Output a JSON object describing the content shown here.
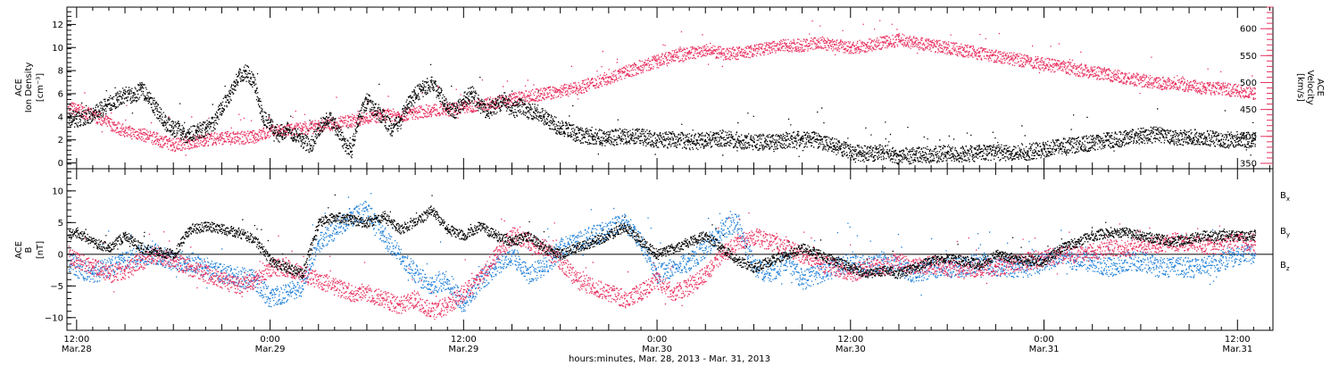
{
  "colors": {
    "black": "#000000",
    "pink": "#e8305f",
    "blue": "#1e7fd8"
  },
  "time_axis": {
    "title": "hours:minutes, Mar. 28, 2013 - Mar. 31, 2013",
    "ticks": [
      {
        "hours": 12,
        "time": "12:00",
        "date": "Mar.28"
      },
      {
        "hours": 24,
        "time": "0:00",
        "date": "Mar.29"
      },
      {
        "hours": 36,
        "time": "12:00",
        "date": "Mar.29"
      },
      {
        "hours": 48,
        "time": "0:00",
        "date": "Mar.30"
      },
      {
        "hours": 60,
        "time": "12:00",
        "date": "Mar.30"
      },
      {
        "hours": 72,
        "time": "0:00",
        "date": "Mar.31"
      },
      {
        "hours": 84,
        "time": "12:00",
        "date": "Mar.31"
      }
    ],
    "range_hours": [
      11.4,
      86.2
    ]
  },
  "chart_data": [
    {
      "type": "scatter",
      "x_units": "hours since Mar. 28, 2013 00:00",
      "ylabel_left": [
        "ACE",
        "Ion Density",
        "[cm⁻³]"
      ],
      "ylim_left": [
        -0.5,
        13.5
      ],
      "yticks_left": [
        0,
        2,
        4,
        6,
        8,
        10,
        12
      ],
      "ylabel_right": [
        "ACE",
        "Velocity",
        "[km/s]"
      ],
      "ylim_right": [
        340,
        640
      ],
      "yticks_right": [
        350,
        400,
        450,
        500,
        550,
        600
      ],
      "series": [
        {
          "color": "#000000",
          "axis": "left",
          "x": [
            11.5,
            12,
            13,
            13.8,
            14.5,
            15,
            15.5,
            16,
            16.5,
            17,
            17.5,
            18,
            18.3,
            18.6,
            19,
            19.5,
            20,
            20.5,
            21,
            21.5,
            22,
            22.5,
            23,
            23.5,
            24,
            24.5,
            25,
            25.5,
            26,
            26.5,
            27,
            27.5,
            28,
            28.5,
            29,
            29.5,
            30,
            30.5,
            31,
            31.5,
            32,
            32.5,
            33,
            33.5,
            34,
            34.5,
            35,
            35.5,
            36,
            36.5,
            37,
            37.5,
            38,
            38.5,
            39,
            39.5,
            40,
            40.5,
            41,
            41.5,
            42,
            42.5,
            43,
            44,
            45,
            46,
            47,
            48,
            49,
            50,
            51,
            52,
            53,
            54,
            55,
            56,
            57,
            58,
            59,
            60,
            60.5,
            61,
            62,
            62.5,
            63,
            64,
            65,
            66,
            67,
            68,
            69,
            70,
            71,
            72,
            73,
            74,
            75,
            76,
            77,
            78,
            79,
            80,
            81,
            82,
            83,
            84,
            85.1
          ],
          "y": [
            4,
            3.8,
            4.2,
            5,
            5.5,
            6,
            5.8,
            6.5,
            5.5,
            4.5,
            3.5,
            3,
            3,
            2.5,
            2.5,
            2.8,
            3,
            3.5,
            5,
            6,
            7.5,
            8,
            7,
            4,
            3.5,
            2.5,
            3,
            2.5,
            2,
            1.5,
            3,
            4,
            3.5,
            2,
            1,
            4,
            5.5,
            4.5,
            4,
            3,
            3.5,
            5,
            6,
            6.5,
            7,
            6,
            5,
            4.5,
            5.5,
            6,
            5,
            4.5,
            5,
            5.5,
            4.5,
            5,
            4.5,
            4.5,
            4,
            3.5,
            3,
            3,
            2.5,
            2.3,
            2.2,
            2.4,
            2.3,
            2,
            2.1,
            1.9,
            2,
            2.2,
            2,
            1.8,
            1.9,
            2,
            2.1,
            2,
            1.5,
            1,
            0.9,
            0.8,
            1,
            0.8,
            0.6,
            0.7,
            0.8,
            0.9,
            0.8,
            0.9,
            1,
            0.8,
            1,
            1.2,
            1.5,
            1.6,
            1.8,
            2,
            2.2,
            2.4,
            2.5,
            2.2,
            2.3,
            2.2,
            2,
            2.1,
            2
          ]
        },
        {
          "color": "#e8305f",
          "axis": "right",
          "x": [
            11.5,
            12,
            13,
            14,
            15,
            16,
            17,
            18,
            19,
            20,
            21,
            22,
            23,
            24,
            25,
            26,
            27,
            28,
            29,
            30,
            31,
            32,
            33,
            34,
            35,
            36,
            37,
            38,
            39,
            40,
            41,
            42,
            43,
            44,
            45,
            46,
            47,
            48,
            49,
            50,
            51,
            52,
            53,
            54,
            55,
            56,
            57,
            58,
            59,
            60,
            61,
            62,
            63,
            64,
            65,
            66,
            67,
            68,
            69,
            70,
            71,
            72,
            73,
            74,
            75,
            76,
            77,
            78,
            79,
            80,
            81,
            82,
            83,
            84,
            85.1
          ],
          "y": [
            455,
            450,
            440,
            425,
            410,
            405,
            395,
            385,
            390,
            395,
            398,
            398,
            400,
            410,
            412,
            415,
            420,
            425,
            430,
            435,
            440,
            440,
            445,
            450,
            450,
            455,
            460,
            465,
            470,
            475,
            480,
            485,
            490,
            500,
            510,
            520,
            530,
            540,
            550,
            555,
            560,
            555,
            555,
            560,
            565,
            570,
            570,
            575,
            570,
            565,
            570,
            575,
            580,
            575,
            570,
            565,
            560,
            555,
            550,
            545,
            540,
            535,
            530,
            525,
            520,
            515,
            510,
            505,
            500,
            500,
            495,
            490,
            490,
            485,
            480
          ]
        }
      ]
    },
    {
      "type": "scatter",
      "x_units": "hours since Mar. 28, 2013 00:00",
      "ylabel_left": [
        "ACE",
        "B",
        "[nT]"
      ],
      "ylim_left": [
        -12,
        13.5
      ],
      "yticks_left": [
        -10,
        -5,
        0,
        5,
        10
      ],
      "zero_line": true,
      "series": [
        {
          "name": "Bx",
          "color": "#000000",
          "x": [
            11.5,
            12,
            13,
            14,
            15,
            16,
            17,
            18,
            19,
            20,
            21,
            22,
            23,
            24,
            25,
            26,
            27,
            28,
            29,
            30,
            31,
            32,
            33,
            34,
            35,
            36,
            37,
            38,
            39,
            40,
            41,
            42,
            43,
            44,
            45,
            46,
            47,
            48,
            49,
            50,
            51,
            52,
            53,
            54,
            55,
            56,
            57,
            58,
            59,
            60,
            61,
            62,
            63,
            64,
            65,
            66,
            67,
            68,
            69,
            70,
            71,
            72,
            73,
            74,
            75,
            76,
            77,
            78,
            79,
            80,
            81,
            82,
            83,
            84,
            85.1
          ],
          "y": [
            3,
            3.5,
            2,
            1,
            3,
            1,
            0.5,
            0,
            4,
            4.5,
            4,
            3.5,
            2.5,
            -1,
            -2,
            -3,
            5,
            6,
            5.5,
            5,
            6,
            4,
            5,
            7,
            4,
            3,
            4.5,
            3,
            2,
            3,
            1,
            0,
            1,
            2,
            3,
            4.5,
            2,
            0,
            1,
            2,
            3,
            1,
            -1,
            -2,
            -1,
            0,
            1,
            0,
            -1,
            -2,
            -3,
            -2.5,
            -3,
            -2,
            -1,
            -0.5,
            -1,
            -1.5,
            0,
            -0.5,
            -1,
            -1,
            1,
            2,
            3,
            3.5,
            3.5,
            3,
            2.5,
            2,
            2.5,
            3,
            3,
            3,
            3
          ]
        },
        {
          "name": "By",
          "color": "#1e7fd8",
          "x": [
            11.5,
            12,
            13,
            14,
            15,
            16,
            17,
            18,
            19,
            20,
            21,
            22,
            23,
            24,
            25,
            26,
            27,
            28,
            29,
            30,
            31,
            32,
            33,
            34,
            35,
            36,
            37,
            38,
            39,
            40,
            41,
            42,
            43,
            44,
            45,
            46,
            47,
            48,
            49,
            50,
            51,
            52,
            53,
            54,
            55,
            56,
            57,
            58,
            59,
            60,
            61,
            62,
            63,
            64,
            65,
            66,
            67,
            68,
            69,
            70,
            71,
            72,
            73,
            74,
            75,
            76,
            77,
            78,
            79,
            80,
            81,
            82,
            83,
            84,
            85.1
          ],
          "y": [
            -1,
            -2,
            -3,
            -2,
            -1,
            0,
            0,
            -1,
            -1,
            -2,
            -3,
            -3.5,
            -4,
            -7,
            -6,
            -5,
            2,
            4,
            6,
            7,
            3,
            0,
            -3,
            -5,
            -4,
            -8,
            -4,
            -2,
            0,
            -3,
            -2,
            1,
            2,
            3,
            4,
            5,
            2,
            -3,
            -2,
            -1,
            1,
            4,
            5,
            -2,
            -3,
            -1,
            -4,
            -3,
            -2,
            -1,
            -2,
            -1,
            -2,
            -3,
            -2,
            -2,
            -2,
            -1,
            -2,
            -2,
            -2,
            -1,
            0,
            -1,
            -1,
            -2,
            -1,
            -1,
            -2,
            -2,
            -2,
            -2,
            -1,
            0,
            0
          ]
        },
        {
          "name": "Bz",
          "color": "#e8305f",
          "x": [
            11.5,
            12,
            13,
            14,
            15,
            16,
            17,
            18,
            19,
            20,
            21,
            22,
            23,
            24,
            25,
            26,
            27,
            28,
            29,
            30,
            31,
            32,
            33,
            34,
            35,
            36,
            37,
            38,
            39,
            40,
            41,
            42,
            43,
            44,
            45,
            46,
            47,
            48,
            49,
            50,
            51,
            52,
            53,
            54,
            55,
            56,
            57,
            58,
            59,
            60,
            61,
            62,
            63,
            64,
            65,
            66,
            67,
            68,
            69,
            70,
            71,
            72,
            73,
            74,
            75,
            76,
            77,
            78,
            79,
            80,
            81,
            82,
            83,
            84,
            85.1
          ],
          "y": [
            0,
            -1,
            -2,
            -3,
            -2.5,
            -1,
            0,
            -1,
            -2,
            -3,
            -4,
            -5,
            -4,
            -2,
            -2,
            -3,
            -4,
            -5,
            -6,
            -6,
            -7,
            -8,
            -7,
            -9,
            -8,
            -6,
            -4,
            0,
            3,
            2,
            1,
            -1,
            -4,
            -5,
            -6,
            -7,
            -6,
            -4,
            -6,
            -5,
            -3,
            0,
            2,
            3,
            2,
            1,
            0,
            -1,
            -2,
            -3,
            -2,
            -2,
            -1,
            -2,
            -1.5,
            -2,
            -2.5,
            -2,
            -2,
            -1.5,
            -1,
            -0.5,
            0,
            0,
            0.5,
            1,
            1,
            1.5,
            1.5,
            2,
            2,
            1.5,
            1.5,
            2,
            2
          ]
        }
      ],
      "legend": [
        {
          "label": "B",
          "sub": "x",
          "color": "#000000"
        },
        {
          "label": "B",
          "sub": "y",
          "color": "#1e7fd8"
        },
        {
          "label": "B",
          "sub": "z",
          "color": "#e8305f"
        }
      ]
    }
  ]
}
